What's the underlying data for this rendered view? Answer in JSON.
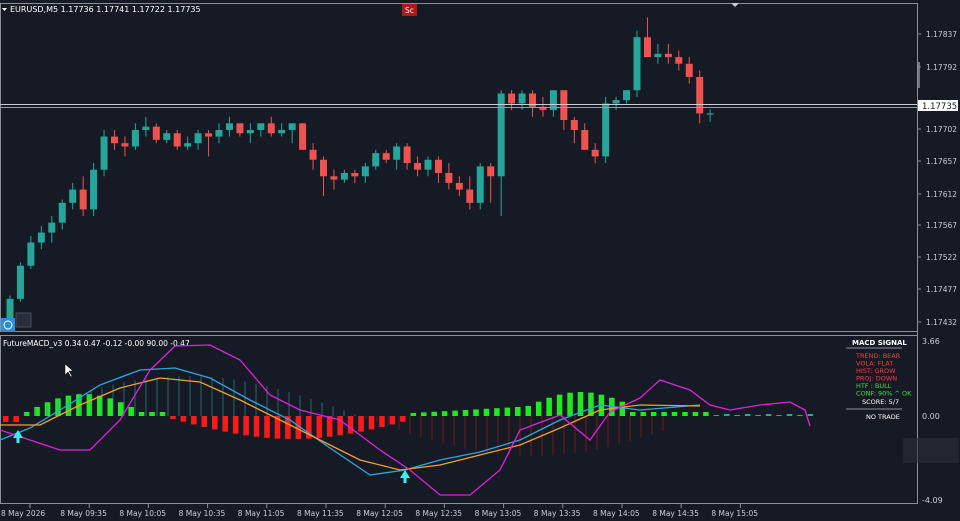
{
  "header": {
    "symbol_line": "EURUSD,M5  1.17736 1.17741 1.17722 1.17735",
    "badge": "Sc"
  },
  "price_axis": {
    "ticks": [
      "1.17837",
      "1.17792",
      "1.17702",
      "1.17657",
      "1.17612",
      "1.17567",
      "1.17522",
      "1.17477",
      "1.17432"
    ],
    "current_price": "1.17735"
  },
  "indicator": {
    "title": "FutureMACD_v3 0.34 0.47 -0.12 -0.00 90.00 -0.47",
    "axis_ticks": [
      "3.66",
      "0.00",
      "-4.09"
    ]
  },
  "macd_signal_panel": {
    "title": "MACD SIGNAL",
    "rows": [
      {
        "label": "TREND:",
        "value": "BEAR",
        "color": "#ff3b3b"
      },
      {
        "label": "VOLA:",
        "value": "FLAT",
        "color": "#ff3b3b"
      },
      {
        "label": "HIST:",
        "value": "GROW",
        "color": "#ff3b3b"
      },
      {
        "label": "PROJ:",
        "value": "DOWN",
        "color": "#ff3b3b"
      },
      {
        "label": "HTF :",
        "value": "BULL",
        "color": "#3fe03f"
      },
      {
        "label": "CONF:",
        "value": "90% ^ OK",
        "color": "#3fe03f"
      }
    ],
    "score": "SCORE: 5/7",
    "action": "NO TRADE"
  },
  "time_axis": {
    "labels": [
      "8 May 2026",
      "8 May 09:35",
      "8 May 10:05",
      "8 May 10:35",
      "8 May 11:05",
      "8 May 11:35",
      "8 May 12:05",
      "8 May 12:35",
      "8 May 13:05",
      "8 May 13:35",
      "8 May 14:05",
      "8 May 14:35",
      "8 May 15:05"
    ]
  },
  "colors": {
    "background": "#161a25",
    "bull_candle": "#26a69a",
    "bear_candle": "#ef5350",
    "hist_green": "#22e822",
    "hist_red": "#ff1a1a",
    "macd_line": "#29a8e0",
    "signal_line": "#f0a030",
    "magenta_line": "#e020e0"
  },
  "chart_data": {
    "type": "candlestick",
    "ylim": [
      1.1742,
      1.1787
    ],
    "candles": [
      [
        1.17425,
        1.1746,
        1.1742,
        1.17455
      ],
      [
        1.17455,
        1.1751,
        1.1745,
        1.17505
      ],
      [
        1.17505,
        1.1755,
        1.175,
        1.1754
      ],
      [
        1.1754,
        1.17565,
        1.1753,
        1.17555
      ],
      [
        1.17555,
        1.1758,
        1.1754,
        1.1757
      ],
      [
        1.1757,
        1.17605,
        1.1756,
        1.176
      ],
      [
        1.176,
        1.1763,
        1.1759,
        1.1762
      ],
      [
        1.1762,
        1.1764,
        1.1758,
        1.1759
      ],
      [
        1.1759,
        1.1766,
        1.1758,
        1.1765
      ],
      [
        1.1765,
        1.1771,
        1.1764,
        1.177
      ],
      [
        1.177,
        1.1771,
        1.1768,
        1.1769
      ],
      [
        1.1769,
        1.177,
        1.1767,
        1.17685
      ],
      [
        1.17685,
        1.1772,
        1.1768,
        1.1771
      ],
      [
        1.1771,
        1.1773,
        1.177,
        1.17715
      ],
      [
        1.17715,
        1.1772,
        1.1769,
        1.17695
      ],
      [
        1.17695,
        1.1771,
        1.1769,
        1.17705
      ],
      [
        1.17705,
        1.1771,
        1.1768,
        1.17685
      ],
      [
        1.17685,
        1.177,
        1.1768,
        1.1769
      ],
      [
        1.1769,
        1.1771,
        1.1768,
        1.17705
      ],
      [
        1.17705,
        1.1771,
        1.1767,
        1.177
      ],
      [
        1.177,
        1.1772,
        1.1769,
        1.1771
      ],
      [
        1.1771,
        1.1773,
        1.177,
        1.1772
      ],
      [
        1.1772,
        1.1772,
        1.177,
        1.17705
      ],
      [
        1.17705,
        1.1772,
        1.1769,
        1.1771
      ],
      [
        1.1771,
        1.1772,
        1.177,
        1.1772
      ],
      [
        1.1772,
        1.1773,
        1.177,
        1.17705
      ],
      [
        1.17705,
        1.1772,
        1.177,
        1.1771
      ],
      [
        1.1771,
        1.1772,
        1.1769,
        1.1772
      ],
      [
        1.1772,
        1.1772,
        1.1768,
        1.1768
      ],
      [
        1.1768,
        1.1769,
        1.1765,
        1.17665
      ],
      [
        1.17665,
        1.1767,
        1.1761,
        1.1764
      ],
      [
        1.1764,
        1.1765,
        1.1762,
        1.17635
      ],
      [
        1.17635,
        1.1765,
        1.1763,
        1.17645
      ],
      [
        1.17645,
        1.1765,
        1.1763,
        1.1764
      ],
      [
        1.1764,
        1.1766,
        1.1763,
        1.17655
      ],
      [
        1.17655,
        1.1768,
        1.1765,
        1.17675
      ],
      [
        1.17675,
        1.1768,
        1.1766,
        1.17665
      ],
      [
        1.17665,
        1.1769,
        1.1765,
        1.17685
      ],
      [
        1.17685,
        1.1769,
        1.1765,
        1.1766
      ],
      [
        1.1766,
        1.1767,
        1.1764,
        1.1765
      ],
      [
        1.1765,
        1.1767,
        1.1764,
        1.17665
      ],
      [
        1.17665,
        1.1767,
        1.1763,
        1.17645
      ],
      [
        1.17645,
        1.1766,
        1.1762,
        1.1763
      ],
      [
        1.1763,
        1.1764,
        1.1761,
        1.1762
      ],
      [
        1.1762,
        1.1764,
        1.1759,
        1.176
      ],
      [
        1.176,
        1.1766,
        1.1759,
        1.17655
      ],
      [
        1.17655,
        1.1766,
        1.176,
        1.1764
      ],
      [
        1.1764,
        1.1777,
        1.1758,
        1.17765
      ],
      [
        1.17765,
        1.1777,
        1.1774,
        1.1775
      ],
      [
        1.1775,
        1.1777,
        1.1774,
        1.17765
      ],
      [
        1.17765,
        1.1777,
        1.1773,
        1.17745
      ],
      [
        1.17745,
        1.1776,
        1.1773,
        1.1774
      ],
      [
        1.1774,
        1.1777,
        1.1773,
        1.1777
      ],
      [
        1.1777,
        1.1777,
        1.1771,
        1.17725
      ],
      [
        1.17725,
        1.1773,
        1.1769,
        1.1771
      ],
      [
        1.1771,
        1.1772,
        1.1768,
        1.1768
      ],
      [
        1.1768,
        1.1769,
        1.1766,
        1.1767
      ],
      [
        1.1767,
        1.1776,
        1.1766,
        1.1775
      ],
      [
        1.1775,
        1.1776,
        1.1774,
        1.17755
      ],
      [
        1.17755,
        1.1777,
        1.1775,
        1.1777
      ],
      [
        1.1777,
        1.1786,
        1.1776,
        1.1785
      ],
      [
        1.1785,
        1.1788,
        1.1782,
        1.1782
      ],
      [
        1.1782,
        1.1784,
        1.1781,
        1.17825
      ],
      [
        1.17825,
        1.1784,
        1.1781,
        1.1782
      ],
      [
        1.1782,
        1.1783,
        1.178,
        1.1781
      ],
      [
        1.1781,
        1.1782,
        1.1778,
        1.1779
      ],
      [
        1.1779,
        1.178,
        1.1772,
        1.17735
      ],
      [
        1.17735,
        1.17741,
        1.17722,
        1.17735
      ]
    ]
  }
}
